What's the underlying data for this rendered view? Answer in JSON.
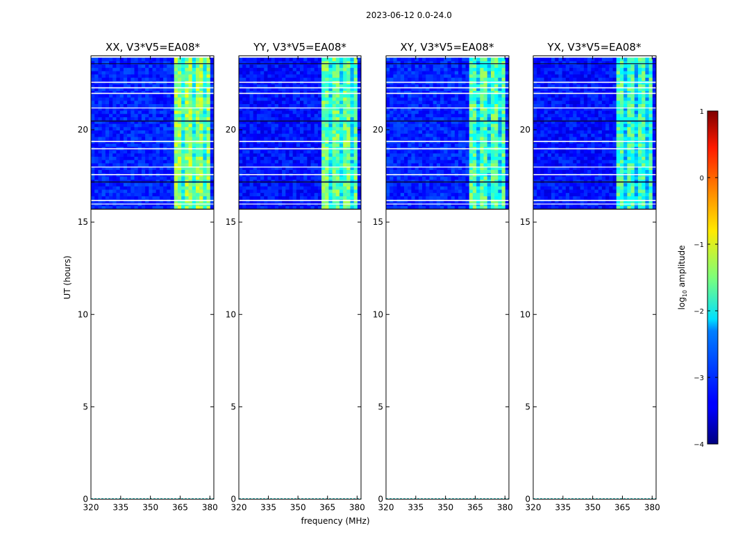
{
  "figure": {
    "suptitle": "2023-06-12 0.0-24.0",
    "xlabel": "frequency (MHz)",
    "ylabel": "UT (hours)"
  },
  "colorbar": {
    "label_main": "log",
    "label_sub": "10",
    "label_rest": " amplitude",
    "min": -4,
    "max": 1,
    "ticks": [
      "1",
      "0",
      "−1",
      "−2",
      "−3",
      "−4"
    ],
    "tick_values": [
      1,
      0,
      -1,
      -2,
      -3,
      -4
    ]
  },
  "chart_data": {
    "type": "heatmap",
    "x_range": [
      320,
      382
    ],
    "y_range": [
      0,
      24
    ],
    "x_ticks": [
      320,
      335,
      350,
      365,
      380
    ],
    "y_ticks": [
      0,
      5,
      10,
      15,
      20
    ],
    "data_start_hour": 15.7,
    "data_end_hour": 23.9,
    "bright_band_mhz": [
      362,
      381
    ],
    "colormap": "jet",
    "panels": [
      {
        "title": "XX, V3*V5=EA08*",
        "background_level": -3.2,
        "band_level": -1.4
      },
      {
        "title": "YY, V3*V5=EA08*",
        "background_level": -3.3,
        "band_level": -1.6
      },
      {
        "title": "XY, V3*V5=EA08*",
        "background_level": -3.2,
        "band_level": -1.7
      },
      {
        "title": "YX, V3*V5=EA08*",
        "background_level": -3.3,
        "band_level": -1.8
      }
    ]
  },
  "tick_labels": {
    "x": [
      "320",
      "335",
      "350",
      "365",
      "380"
    ],
    "y": [
      "0",
      "5",
      "10",
      "15",
      "20"
    ]
  }
}
